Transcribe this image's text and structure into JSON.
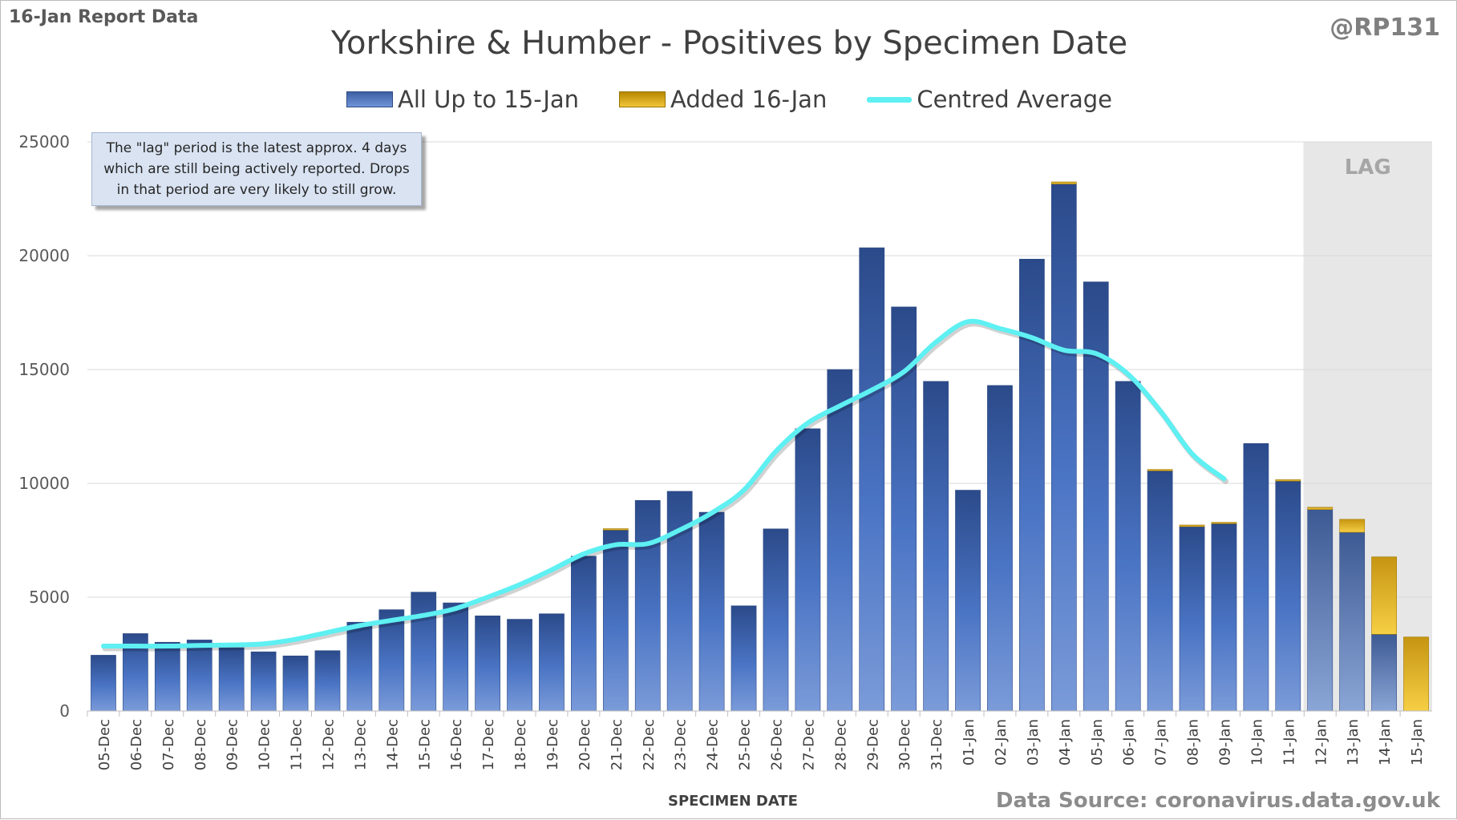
{
  "header": {
    "report_label": "16-Jan Report Data",
    "handle": "@RP131",
    "source": "Data Source: coronavirus.data.gov.uk"
  },
  "note": {
    "text": "The \"lag\" period is the latest approx. 4 days which are still being actively reported.  Drops in that period are very likely to still grow."
  },
  "colors": {
    "bar_base": "#3a5da5",
    "bar_added": "#e8b62a",
    "average_line": "#5ef0f2",
    "lag_shade": "#e7e7e7",
    "gridline": "#d9d9d9"
  },
  "chart_data": {
    "type": "bar",
    "title": "Yorkshire & Humber - Positives by Specimen Date",
    "xlabel": "SPECIMEN DATE",
    "ylabel": "",
    "ylim": [
      0,
      25000
    ],
    "yticks": [
      0,
      5000,
      10000,
      15000,
      20000,
      25000
    ],
    "categories": [
      "05-Dec",
      "06-Dec",
      "07-Dec",
      "08-Dec",
      "09-Dec",
      "10-Dec",
      "11-Dec",
      "12-Dec",
      "13-Dec",
      "14-Dec",
      "15-Dec",
      "16-Dec",
      "17-Dec",
      "18-Dec",
      "19-Dec",
      "20-Dec",
      "21-Dec",
      "22-Dec",
      "23-Dec",
      "24-Dec",
      "25-Dec",
      "26-Dec",
      "27-Dec",
      "28-Dec",
      "29-Dec",
      "30-Dec",
      "31-Dec",
      "01-Jan",
      "02-Jan",
      "03-Jan",
      "04-Jan",
      "05-Jan",
      "06-Jan",
      "07-Jan",
      "08-Jan",
      "09-Jan",
      "10-Jan",
      "11-Jan",
      "12-Jan",
      "13-Jan",
      "14-Jan",
      "15-Jan"
    ],
    "stacked": true,
    "series": [
      {
        "name": "All Up to 15-Jan",
        "values": [
          2450,
          3400,
          3020,
          3120,
          2780,
          2600,
          2420,
          2650,
          3900,
          4450,
          5220,
          4750,
          4180,
          4030,
          4270,
          6800,
          7950,
          9250,
          9650,
          8730,
          4620,
          8000,
          12400,
          15000,
          20350,
          17750,
          14480,
          9700,
          14300,
          19850,
          23150,
          18850,
          14480,
          10550,
          8100,
          8230,
          11750,
          10100,
          8850,
          7850,
          3370,
          0
        ]
      },
      {
        "name": "Added 16-Jan",
        "values": [
          0,
          0,
          0,
          0,
          0,
          0,
          0,
          0,
          0,
          0,
          0,
          0,
          0,
          0,
          0,
          0,
          60,
          0,
          0,
          0,
          0,
          0,
          0,
          0,
          0,
          0,
          0,
          0,
          0,
          0,
          90,
          0,
          0,
          60,
          70,
          60,
          0,
          60,
          100,
          570,
          3400,
          3250
        ]
      }
    ],
    "average": {
      "name": "Centred Average",
      "values": [
        2850,
        2850,
        2850,
        2880,
        2900,
        2950,
        3150,
        3450,
        3750,
        3980,
        4200,
        4500,
        5000,
        5550,
        6200,
        6900,
        7300,
        7350,
        7950,
        8700,
        9700,
        11400,
        12650,
        13400,
        14100,
        14900,
        16200,
        17100,
        16800,
        16400,
        15850,
        15700,
        14800,
        13200,
        11300,
        10200
      ]
    },
    "lag": {
      "label": "LAG",
      "start_category": "12-Jan",
      "end_category": "15-Jan"
    },
    "grid": true,
    "legend_position": "top-center"
  }
}
